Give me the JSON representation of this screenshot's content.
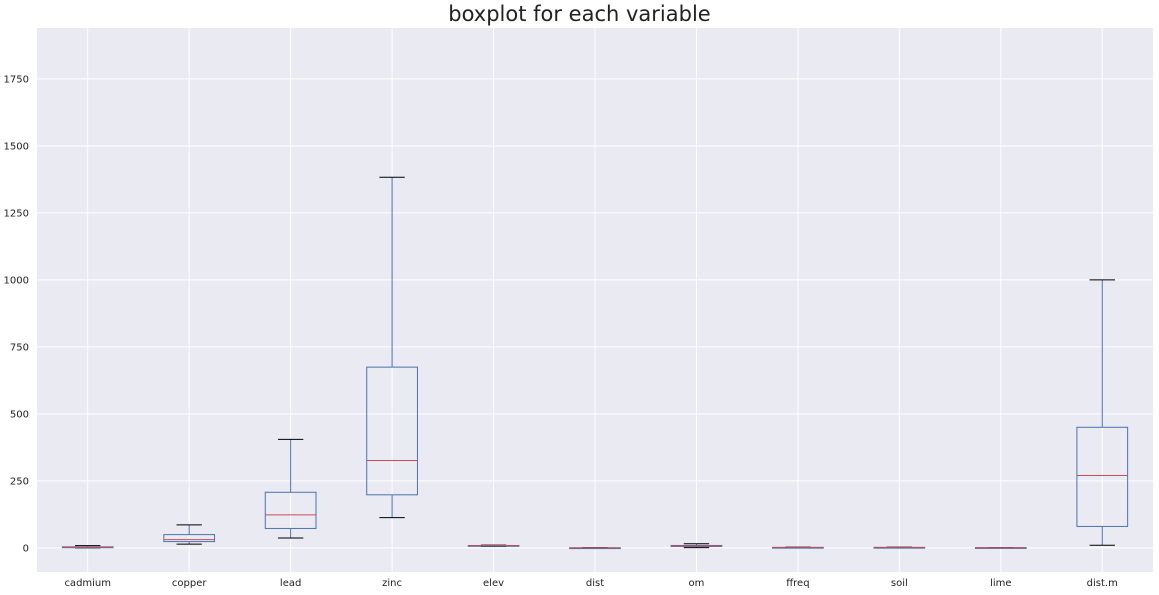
{
  "chart_data": {
    "type": "boxplot",
    "title": "boxplot for each variable",
    "xlabel": "",
    "ylabel": "",
    "ylim": [
      -90,
      1940
    ],
    "yticks": [
      0,
      250,
      500,
      750,
      1000,
      1250,
      1500,
      1750
    ],
    "grid": true,
    "colors": {
      "background": "#eaeaf2",
      "grid": "#ffffff",
      "box": "#4c72b0",
      "median": "#c44e52",
      "whisker_cap": "#000000"
    },
    "categories": [
      "cadmium",
      "copper",
      "lead",
      "zinc",
      "elev",
      "dist",
      "om",
      "ffreq",
      "soil",
      "lime",
      "dist.m"
    ],
    "boxes": [
      {
        "name": "cadmium",
        "whislo": 0.2,
        "q1": 0.8,
        "median": 2.1,
        "q3": 3.9,
        "whishi": 8.5
      },
      {
        "name": "copper",
        "whislo": 14,
        "q1": 23.5,
        "median": 31,
        "q3": 49.5,
        "whishi": 86
      },
      {
        "name": "lead",
        "whislo": 37,
        "q1": 72.5,
        "median": 123,
        "q3": 207.5,
        "whishi": 405
      },
      {
        "name": "zinc",
        "whislo": 113,
        "q1": 198,
        "median": 326,
        "q3": 674.5,
        "whishi": 1383
      },
      {
        "name": "elev",
        "whislo": 5.2,
        "q1": 7.5,
        "median": 8.2,
        "q3": 8.9,
        "whishi": 10.5
      },
      {
        "name": "dist",
        "whislo": 0,
        "q1": 0.08,
        "median": 0.21,
        "q3": 0.36,
        "whishi": 0.88
      },
      {
        "name": "om",
        "whislo": 1,
        "q1": 5.3,
        "median": 6.9,
        "q3": 9,
        "whishi": 15.5
      },
      {
        "name": "ffreq",
        "whislo": 1,
        "q1": 1,
        "median": 1,
        "q3": 2,
        "whishi": 3
      },
      {
        "name": "soil",
        "whislo": 1,
        "q1": 1,
        "median": 1,
        "q3": 2,
        "whishi": 3
      },
      {
        "name": "lime",
        "whislo": 0,
        "q1": 0,
        "median": 0,
        "q3": 1,
        "whishi": 1
      },
      {
        "name": "dist.m",
        "whislo": 10,
        "q1": 80,
        "median": 270,
        "q3": 450,
        "whishi": 1000
      }
    ]
  }
}
